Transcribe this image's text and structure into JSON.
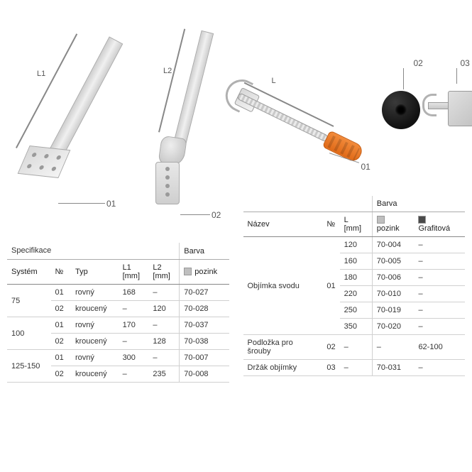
{
  "left": {
    "dim1_label": "L1",
    "dim2_label": "L2",
    "callout1": "01",
    "callout2": "02",
    "table": {
      "spec_header": "Specifikace",
      "barva_header": "Barva",
      "cols": {
        "system": "Systém",
        "nr": "№",
        "typ": "Typ",
        "l1": "L1\n[mm]",
        "l2": "L2\n[mm]",
        "pozink": "pozink"
      },
      "swatch_pozink": "#bfbfbf",
      "groups": [
        {
          "system": "75",
          "rows": [
            {
              "nr": "01",
              "typ": "rovný",
              "l1": "168",
              "l2": "–",
              "pozink": "70-027"
            },
            {
              "nr": "02",
              "typ": "kroucený",
              "l1": "–",
              "l2": "120",
              "pozink": "70-028"
            }
          ]
        },
        {
          "system": "100",
          "rows": [
            {
              "nr": "01",
              "typ": "rovný",
              "l1": "170",
              "l2": "–",
              "pozink": "70-037"
            },
            {
              "nr": "02",
              "typ": "kroucený",
              "l1": "–",
              "l2": "128",
              "pozink": "70-038"
            }
          ]
        },
        {
          "system": "125-150",
          "rows": [
            {
              "nr": "01",
              "typ": "rovný",
              "l1": "300",
              "l2": "–",
              "pozink": "70-007"
            },
            {
              "nr": "02",
              "typ": "kroucený",
              "l1": "–",
              "l2": "235",
              "pozink": "70-008"
            }
          ]
        }
      ]
    }
  },
  "right": {
    "dimL_label": "L",
    "callout1": "01",
    "callout2": "02",
    "callout3": "03",
    "table": {
      "barva_header": "Barva",
      "cols": {
        "nazev": "Název",
        "nr": "№",
        "l": "L [mm]",
        "pozink": "pozink",
        "grafit": "Grafitová"
      },
      "swatch_pozink": "#bfbfbf",
      "swatch_grafit": "#4a4a4a",
      "groups": [
        {
          "nazev": "Objímka svodu",
          "nr": "01",
          "rows": [
            {
              "l": "120",
              "pozink": "70-004",
              "grafit": "–"
            },
            {
              "l": "160",
              "pozink": "70-005",
              "grafit": "–"
            },
            {
              "l": "180",
              "pozink": "70-006",
              "grafit": "–"
            },
            {
              "l": "220",
              "pozink": "70-010",
              "grafit": "–"
            },
            {
              "l": "250",
              "pozink": "70-019",
              "grafit": "–"
            },
            {
              "l": "350",
              "pozink": "70-020",
              "grafit": "–"
            }
          ]
        },
        {
          "nazev": "Podložka pro šrouby",
          "nr": "02",
          "rows": [
            {
              "l": "–",
              "pozink": "–",
              "grafit": "62-100"
            }
          ]
        },
        {
          "nazev": "Držák objímky",
          "nr": "03",
          "rows": [
            {
              "l": "–",
              "pozink": "70-031",
              "grafit": "–"
            }
          ]
        }
      ]
    }
  }
}
